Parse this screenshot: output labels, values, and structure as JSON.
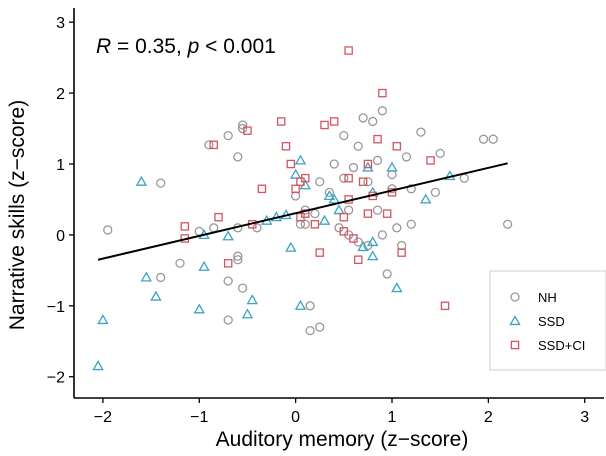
{
  "chart_data": {
    "type": "scatter",
    "xlabel": "Auditory memory (z−score)",
    "ylabel": "Narrative skills (z−score)",
    "xlim": [
      -2.3,
      3.2
    ],
    "ylim": [
      -2.3,
      3.2
    ],
    "x_ticks": [
      -2,
      -1,
      0,
      1,
      2,
      3
    ],
    "y_ticks": [
      -2,
      -1,
      0,
      1,
      2,
      3
    ],
    "x_tick_labels": [
      "−2",
      "−1",
      "0",
      "1",
      "2",
      "3"
    ],
    "y_tick_labels": [
      "−2",
      "−1",
      "0",
      "1",
      "2",
      "3"
    ],
    "grid": false,
    "legend_position": "right",
    "annotation": {
      "r_symbol": "R",
      "r_text": " = 0.35, ",
      "p_symbol": "p",
      "p_text": " < 0.001"
    },
    "regression_line": {
      "x": [
        -2.05,
        2.2
      ],
      "y": [
        -0.35,
        1.01
      ],
      "color": "#000000"
    },
    "series": [
      {
        "name": "NH",
        "marker": "circle",
        "color": "#999999",
        "points": [
          [
            -1.4,
            0.73
          ],
          [
            -1.95,
            0.07
          ],
          [
            -1.2,
            -0.4
          ],
          [
            -1.4,
            -0.6
          ],
          [
            -1.0,
            0.05
          ],
          [
            -0.9,
            1.27
          ],
          [
            -0.85,
            0.1
          ],
          [
            -0.7,
            1.4
          ],
          [
            -0.6,
            1.1
          ],
          [
            -0.55,
            1.55
          ],
          [
            -0.55,
            1.5
          ],
          [
            -0.7,
            -0.65
          ],
          [
            -0.6,
            -0.3
          ],
          [
            -0.6,
            -0.35
          ],
          [
            -0.55,
            -0.75
          ],
          [
            -0.7,
            -1.2
          ],
          [
            -0.4,
            0.1
          ],
          [
            -0.6,
            0.1
          ],
          [
            0.0,
            0.55
          ],
          [
            0.05,
            0.15
          ],
          [
            0.1,
            0.15
          ],
          [
            0.1,
            0.35
          ],
          [
            0.2,
            0.3
          ],
          [
            0.25,
            0.75
          ],
          [
            0.4,
            1.0
          ],
          [
            0.5,
            1.4
          ],
          [
            0.6,
            0.95
          ],
          [
            0.65,
            1.25
          ],
          [
            0.7,
            1.65
          ],
          [
            0.8,
            1.6
          ],
          [
            0.85,
            1.05
          ],
          [
            0.9,
            1.75
          ],
          [
            0.75,
            0.75
          ],
          [
            0.5,
            0.8
          ],
          [
            0.55,
            0.35
          ],
          [
            0.45,
            0.1
          ],
          [
            0.55,
            0.0
          ],
          [
            0.65,
            -0.1
          ],
          [
            0.75,
            -0.15
          ],
          [
            0.9,
            0.0
          ],
          [
            1.0,
            0.65
          ],
          [
            1.0,
            0.85
          ],
          [
            1.05,
            0.1
          ],
          [
            1.1,
            -0.15
          ],
          [
            1.15,
            1.1
          ],
          [
            1.2,
            0.65
          ],
          [
            1.3,
            1.45
          ],
          [
            1.45,
            0.6
          ],
          [
            1.5,
            1.15
          ],
          [
            1.75,
            0.8
          ],
          [
            1.95,
            1.35
          ],
          [
            2.05,
            1.35
          ],
          [
            2.2,
            0.15
          ],
          [
            1.2,
            0.15
          ],
          [
            0.95,
            -0.55
          ],
          [
            0.15,
            -1.0
          ],
          [
            0.25,
            -1.3
          ],
          [
            0.15,
            -1.35
          ],
          [
            0.85,
            0.35
          ],
          [
            0.35,
            0.6
          ]
        ]
      },
      {
        "name": "SSD",
        "marker": "triangle",
        "color": "#3aa4c2",
        "points": [
          [
            -1.6,
            0.75
          ],
          [
            -2.05,
            -1.85
          ],
          [
            -2.0,
            -1.2
          ],
          [
            -1.55,
            -0.6
          ],
          [
            -1.45,
            -0.87
          ],
          [
            -0.95,
            0.0
          ],
          [
            -0.95,
            -0.45
          ],
          [
            -1.0,
            -1.05
          ],
          [
            -0.7,
            -0.02
          ],
          [
            -0.45,
            -0.92
          ],
          [
            -0.5,
            -1.12
          ],
          [
            -0.3,
            0.2
          ],
          [
            -0.1,
            0.28
          ],
          [
            -0.05,
            -0.18
          ],
          [
            0.05,
            1.05
          ],
          [
            0.0,
            0.85
          ],
          [
            0.1,
            0.7
          ],
          [
            0.05,
            -1.0
          ],
          [
            0.3,
            0.2
          ],
          [
            0.35,
            0.55
          ],
          [
            0.45,
            0.35
          ],
          [
            0.75,
            0.95
          ],
          [
            0.8,
            -0.1
          ],
          [
            0.8,
            -0.3
          ],
          [
            0.7,
            -0.17
          ],
          [
            0.8,
            0.6
          ],
          [
            1.0,
            0.95
          ],
          [
            1.05,
            -0.75
          ],
          [
            1.35,
            0.5
          ],
          [
            1.6,
            0.83
          ],
          [
            0.4,
            0.5
          ],
          [
            -0.2,
            0.25
          ]
        ]
      },
      {
        "name": "SSD+CI",
        "marker": "square",
        "color": "#d45560",
        "points": [
          [
            -1.15,
            -0.05
          ],
          [
            -1.15,
            0.12
          ],
          [
            -0.85,
            1.27
          ],
          [
            -0.8,
            0.25
          ],
          [
            -0.7,
            -0.4
          ],
          [
            -0.5,
            1.47
          ],
          [
            -0.45,
            0.15
          ],
          [
            -0.35,
            0.65
          ],
          [
            -0.15,
            1.6
          ],
          [
            -0.1,
            1.25
          ],
          [
            -0.05,
            1.0
          ],
          [
            0.0,
            0.65
          ],
          [
            0.05,
            0.75
          ],
          [
            0.1,
            0.3
          ],
          [
            0.1,
            0.8
          ],
          [
            0.2,
            0.15
          ],
          [
            0.25,
            -0.25
          ],
          [
            0.3,
            1.55
          ],
          [
            0.4,
            1.6
          ],
          [
            0.5,
            0.25
          ],
          [
            0.5,
            0.05
          ],
          [
            0.55,
            0.5
          ],
          [
            0.55,
            0.8
          ],
          [
            0.55,
            2.6
          ],
          [
            0.6,
            -0.05
          ],
          [
            0.7,
            0.75
          ],
          [
            0.75,
            0.3
          ],
          [
            0.75,
            1.0
          ],
          [
            0.8,
            0.55
          ],
          [
            0.85,
            1.35
          ],
          [
            0.9,
            2.0
          ],
          [
            1.0,
            0.6
          ],
          [
            1.05,
            1.25
          ],
          [
            1.1,
            -0.25
          ],
          [
            1.4,
            1.05
          ],
          [
            1.55,
            -1.0
          ],
          [
            0.65,
            -0.35
          ],
          [
            0.05,
            0.25
          ],
          [
            0.95,
            0.3
          ]
        ]
      }
    ]
  }
}
